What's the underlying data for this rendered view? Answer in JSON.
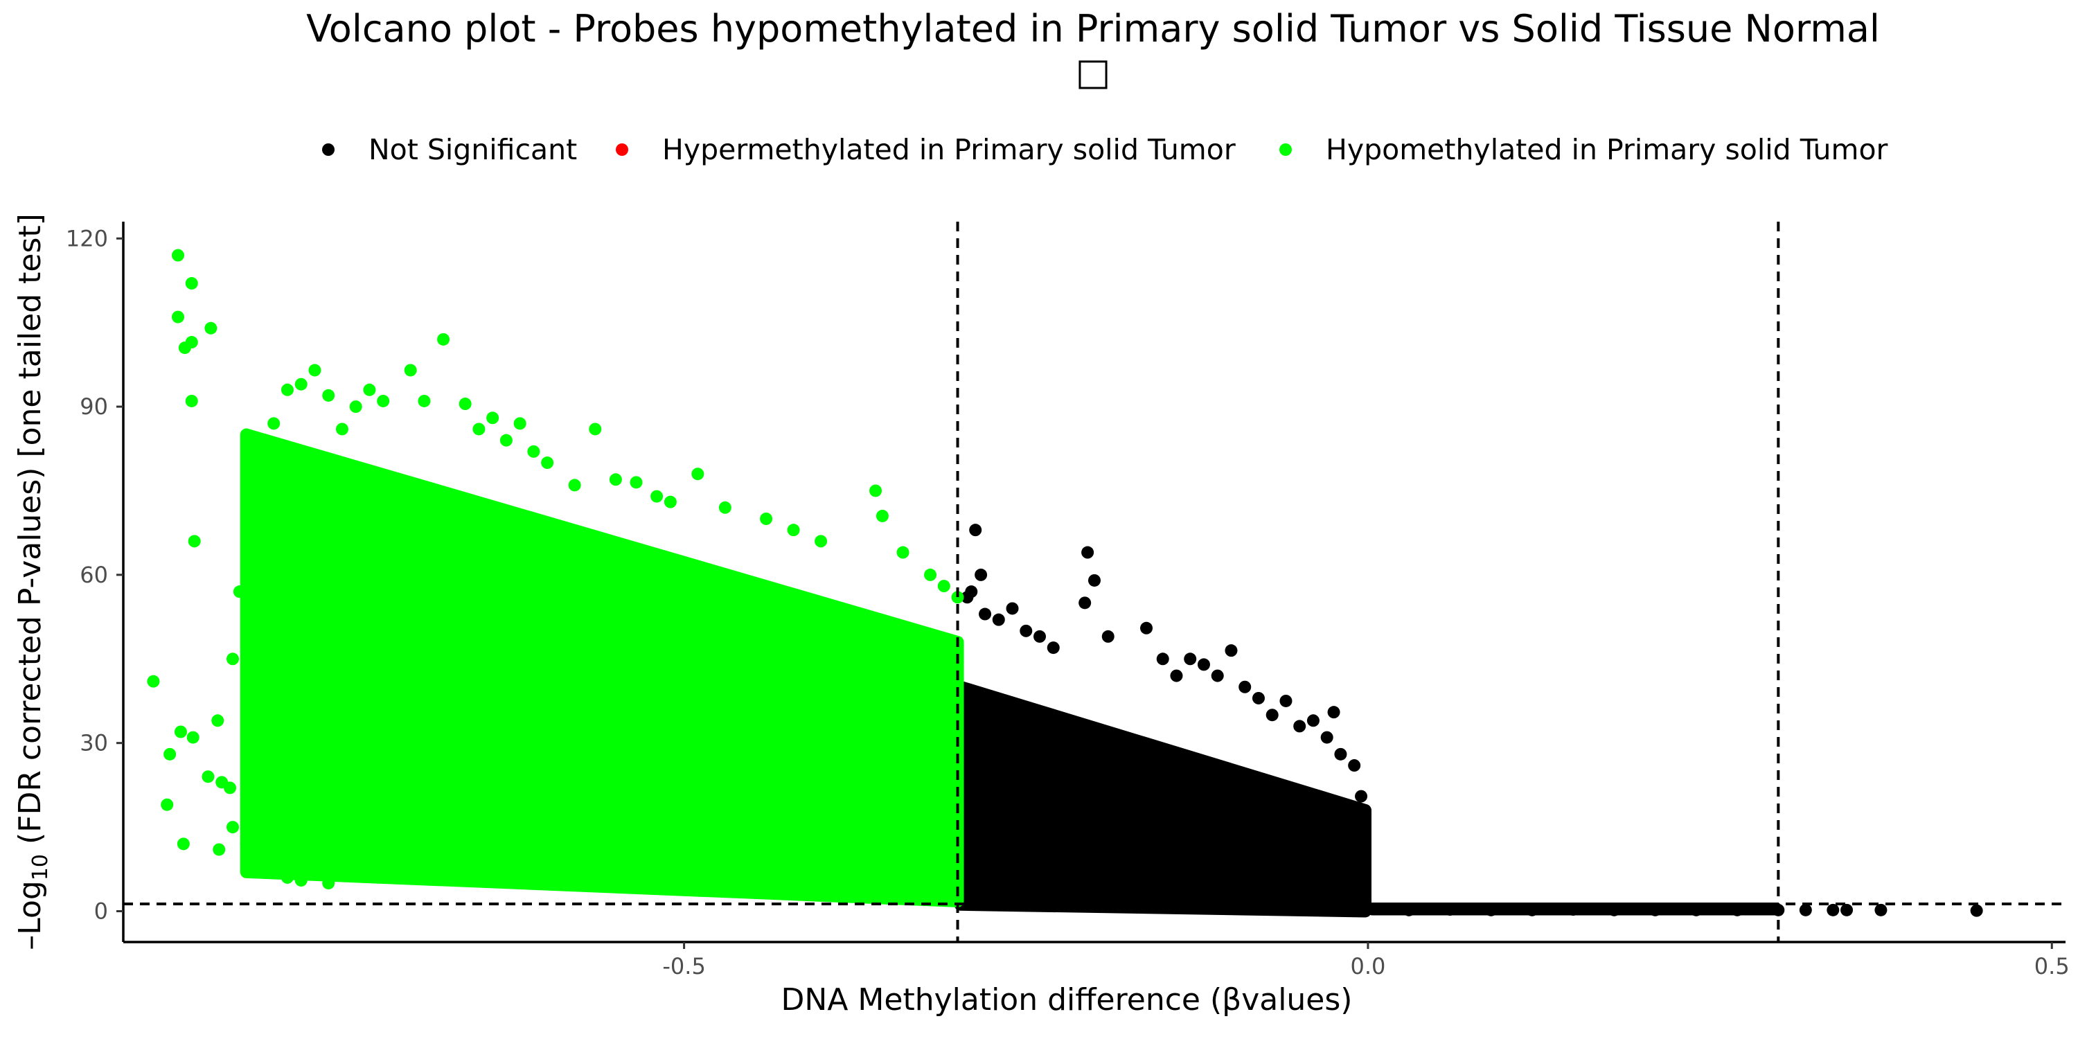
{
  "chart_data": {
    "type": "scatter",
    "title": "Volcano plot - Probes hypomethylated in Primary solid Tumor vs Solid Tissue Normal",
    "title_line2": "□",
    "xlabel": "DNA Methylation difference (βvalues)",
    "ylabel_parts": {
      "prefix": "–Log",
      "subscript": "10",
      "suffix": " (FDR corrected P-values) [one tailed test]"
    },
    "xlim": [
      -0.91,
      0.51
    ],
    "ylim": [
      -5.5,
      123
    ],
    "x_ticks": [
      {
        "value": -0.5,
        "label": "-0.5"
      },
      {
        "value": 0.0,
        "label": "0.0"
      },
      {
        "value": 0.5,
        "label": "0.5"
      }
    ],
    "y_ticks": [
      {
        "value": 0,
        "label": "0"
      },
      {
        "value": 30,
        "label": "30"
      },
      {
        "value": 60,
        "label": "60"
      },
      {
        "value": 90,
        "label": "90"
      },
      {
        "value": 120,
        "label": "120"
      }
    ],
    "grid": false,
    "legend_position": "top",
    "thresholds": {
      "x": [
        -0.3,
        0.3
      ],
      "y": 1.3
    },
    "series": [
      {
        "name": "Not Significant",
        "color": "#000000",
        "points": [
          [
            -0.287,
            68
          ],
          [
            -0.283,
            60
          ],
          [
            -0.29,
            57
          ],
          [
            -0.293,
            56
          ],
          [
            -0.28,
            53
          ],
          [
            -0.27,
            52
          ],
          [
            -0.26,
            54
          ],
          [
            -0.25,
            50
          ],
          [
            -0.24,
            49
          ],
          [
            -0.23,
            47
          ],
          [
            -0.205,
            64
          ],
          [
            -0.2,
            59
          ],
          [
            -0.207,
            55
          ],
          [
            -0.19,
            49
          ],
          [
            -0.162,
            50.5
          ],
          [
            -0.15,
            45
          ],
          [
            -0.14,
            42
          ],
          [
            -0.13,
            45
          ],
          [
            -0.12,
            44
          ],
          [
            -0.11,
            42
          ],
          [
            -0.1,
            46.5
          ],
          [
            -0.09,
            40
          ],
          [
            -0.08,
            38
          ],
          [
            -0.07,
            35
          ],
          [
            -0.06,
            37.5
          ],
          [
            -0.05,
            33
          ],
          [
            -0.04,
            34
          ],
          [
            -0.03,
            31
          ],
          [
            -0.025,
            35.5
          ],
          [
            -0.02,
            28
          ],
          [
            -0.01,
            26
          ],
          [
            -0.005,
            20.5
          ],
          [
            0.03,
            0.2
          ],
          [
            0.06,
            0.3
          ],
          [
            0.09,
            0.2
          ],
          [
            0.12,
            0.2
          ],
          [
            0.15,
            0.3
          ],
          [
            0.18,
            0.2
          ],
          [
            0.21,
            0.2
          ],
          [
            0.24,
            0.2
          ],
          [
            0.27,
            0.2
          ],
          [
            0.3,
            0.2
          ],
          [
            0.32,
            0.2
          ],
          [
            0.34,
            0.2
          ],
          [
            0.35,
            0.2
          ],
          [
            0.375,
            0.2
          ],
          [
            0.445,
            0.1
          ]
        ],
        "band": {
          "x_start": -0.298,
          "x_end": -0.002,
          "y_top_start": 40,
          "y_top_end": 18,
          "y_bottom_start": 1.2,
          "y_bottom_end": 0
        },
        "tail": {
          "x_start": 0.0,
          "x_end": 0.3,
          "y_max": 0.8
        }
      },
      {
        "name": "Hypermethylated in Primary solid Tumor",
        "color": "#ff0000",
        "points": []
      },
      {
        "name": "Hypomethylated in Primary solid Tumor",
        "color": "#00ff00",
        "points": [
          [
            -0.888,
            41
          ],
          [
            -0.878,
            19
          ],
          [
            -0.876,
            28
          ],
          [
            -0.866,
            12
          ],
          [
            -0.868,
            32
          ],
          [
            -0.859,
            31
          ],
          [
            -0.848,
            24
          ],
          [
            -0.838,
            23
          ],
          [
            -0.832,
            22
          ],
          [
            -0.87,
            117
          ],
          [
            -0.87,
            106
          ],
          [
            -0.865,
            100.5
          ],
          [
            -0.86,
            101.5
          ],
          [
            -0.86,
            112
          ],
          [
            -0.846,
            104
          ],
          [
            -0.86,
            91
          ],
          [
            -0.858,
            66
          ],
          [
            -0.841,
            34
          ],
          [
            -0.83,
            45
          ],
          [
            -0.825,
            57
          ],
          [
            -0.818,
            63
          ],
          [
            -0.816,
            83
          ],
          [
            -0.8,
            87
          ],
          [
            -0.79,
            93
          ],
          [
            -0.78,
            94
          ],
          [
            -0.77,
            96.5
          ],
          [
            -0.76,
            92
          ],
          [
            -0.75,
            86
          ],
          [
            -0.74,
            90
          ],
          [
            -0.73,
            93
          ],
          [
            -0.72,
            91
          ],
          [
            -0.7,
            96.5
          ],
          [
            -0.69,
            91
          ],
          [
            -0.676,
            102
          ],
          [
            -0.66,
            90.5
          ],
          [
            -0.65,
            86
          ],
          [
            -0.64,
            88
          ],
          [
            -0.63,
            84
          ],
          [
            -0.62,
            87
          ],
          [
            -0.61,
            82
          ],
          [
            -0.6,
            80
          ],
          [
            -0.58,
            76
          ],
          [
            -0.565,
            86
          ],
          [
            -0.55,
            77
          ],
          [
            -0.535,
            76.5
          ],
          [
            -0.52,
            74
          ],
          [
            -0.51,
            73
          ],
          [
            -0.49,
            78
          ],
          [
            -0.47,
            72
          ],
          [
            -0.44,
            70
          ],
          [
            -0.42,
            68
          ],
          [
            -0.4,
            66
          ],
          [
            -0.36,
            75
          ],
          [
            -0.355,
            70.5
          ],
          [
            -0.34,
            64
          ],
          [
            -0.32,
            60
          ],
          [
            -0.31,
            58
          ],
          [
            -0.3,
            56
          ],
          [
            -0.82,
            12
          ],
          [
            -0.81,
            10
          ],
          [
            -0.8,
            8
          ],
          [
            -0.79,
            6
          ],
          [
            -0.78,
            5.5
          ],
          [
            -0.76,
            5
          ],
          [
            -0.83,
            15
          ],
          [
            -0.84,
            11
          ]
        ],
        "band": {
          "x_start": -0.82,
          "x_end": -0.3,
          "y_top_start": 85,
          "y_top_end": 48,
          "y_bottom_start": 7,
          "y_bottom_end": 1.8
        }
      }
    ]
  }
}
